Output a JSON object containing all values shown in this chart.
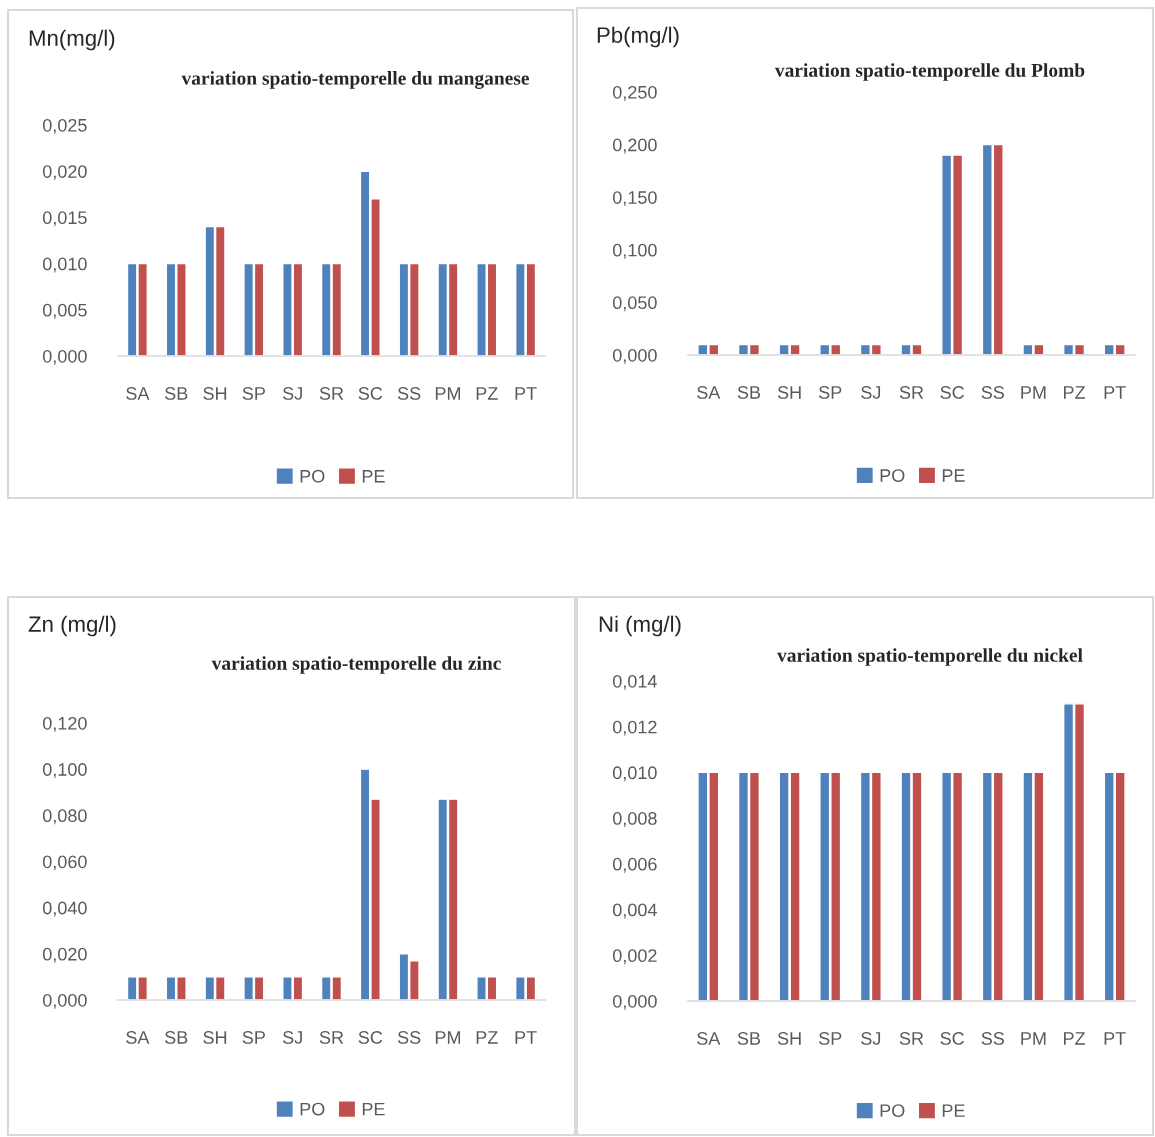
{
  "chart_data": [
    {
      "type": "bar",
      "title": "variation spatio-temporelle du manganese",
      "ylabel": "Mn(mg/l)",
      "categories": [
        "SA",
        "SB",
        "SH",
        "SP",
        "SJ",
        "SR",
        "SC",
        "SS",
        "PM",
        "PZ",
        "PT"
      ],
      "series": [
        {
          "name": "PO",
          "color": "#4f81bd",
          "values": [
            0.01,
            0.01,
            0.014,
            0.01,
            0.01,
            0.01,
            0.02,
            0.01,
            0.01,
            0.01,
            0.01
          ]
        },
        {
          "name": "PE",
          "color": "#c0504d",
          "values": [
            0.01,
            0.01,
            0.014,
            0.01,
            0.01,
            0.01,
            0.017,
            0.01,
            0.01,
            0.01,
            0.01
          ]
        }
      ],
      "ylim": [
        0,
        0.025
      ],
      "yticks": [
        {
          "value": 0,
          "label": "0,000"
        },
        {
          "value": 0.005,
          "label": "0,005"
        },
        {
          "value": 0.01,
          "label": "0,010"
        },
        {
          "value": 0.015,
          "label": "0,015"
        },
        {
          "value": 0.02,
          "label": "0,020"
        },
        {
          "value": 0.025,
          "label": "0,025"
        }
      ],
      "grid": false,
      "legend": "bottom"
    },
    {
      "type": "bar",
      "title": "variation spatio-temporelle du Plomb",
      "ylabel": "Pb(mg/l)",
      "categories": [
        "SA",
        "SB",
        "SH",
        "SP",
        "SJ",
        "SR",
        "SC",
        "SS",
        "PM",
        "PZ",
        "PT"
      ],
      "series": [
        {
          "name": "PO",
          "color": "#4f81bd",
          "values": [
            0.01,
            0.01,
            0.01,
            0.01,
            0.01,
            0.01,
            0.19,
            0.2,
            0.01,
            0.01,
            0.01
          ]
        },
        {
          "name": "PE",
          "color": "#c0504d",
          "values": [
            0.01,
            0.01,
            0.01,
            0.01,
            0.01,
            0.01,
            0.19,
            0.2,
            0.01,
            0.01,
            0.01
          ]
        }
      ],
      "ylim": [
        0,
        0.25
      ],
      "yticks": [
        {
          "value": 0,
          "label": "0,000"
        },
        {
          "value": 0.05,
          "label": "0,050"
        },
        {
          "value": 0.1,
          "label": "0,100"
        },
        {
          "value": 0.15,
          "label": "0,150"
        },
        {
          "value": 0.2,
          "label": "0,200"
        },
        {
          "value": 0.25,
          "label": "0,250"
        }
      ],
      "grid": false,
      "legend": "bottom"
    },
    {
      "type": "bar",
      "title": "variation spatio-temporelle du zinc",
      "ylabel": "Zn (mg/l)",
      "categories": [
        "SA",
        "SB",
        "SH",
        "SP",
        "SJ",
        "SR",
        "SC",
        "SS",
        "PM",
        "PZ",
        "PT"
      ],
      "series": [
        {
          "name": "PO",
          "color": "#4f81bd",
          "values": [
            0.01,
            0.01,
            0.01,
            0.01,
            0.01,
            0.01,
            0.1,
            0.02,
            0.087,
            0.01,
            0.01
          ]
        },
        {
          "name": "PE",
          "color": "#c0504d",
          "values": [
            0.01,
            0.01,
            0.01,
            0.01,
            0.01,
            0.01,
            0.087,
            0.017,
            0.087,
            0.01,
            0.01
          ]
        }
      ],
      "ylim": [
        0,
        0.12
      ],
      "yticks": [
        {
          "value": 0,
          "label": "0,000"
        },
        {
          "value": 0.02,
          "label": "0,020"
        },
        {
          "value": 0.04,
          "label": "0,040"
        },
        {
          "value": 0.06,
          "label": "0,060"
        },
        {
          "value": 0.08,
          "label": "0,080"
        },
        {
          "value": 0.1,
          "label": "0,100"
        },
        {
          "value": 0.12,
          "label": "0,120"
        }
      ],
      "grid": false,
      "legend": "bottom"
    },
    {
      "type": "bar",
      "title": "variation spatio-temporelle du nickel",
      "ylabel": "Ni (mg/l)",
      "categories": [
        "SA",
        "SB",
        "SH",
        "SP",
        "SJ",
        "SR",
        "SC",
        "SS",
        "PM",
        "PZ",
        "PT"
      ],
      "series": [
        {
          "name": "PO",
          "color": "#4f81bd",
          "values": [
            0.01,
            0.01,
            0.01,
            0.01,
            0.01,
            0.01,
            0.01,
            0.01,
            0.01,
            0.013,
            0.01
          ]
        },
        {
          "name": "PE",
          "color": "#c0504d",
          "values": [
            0.01,
            0.01,
            0.01,
            0.01,
            0.01,
            0.01,
            0.01,
            0.01,
            0.01,
            0.013,
            0.01
          ]
        }
      ],
      "ylim": [
        0,
        0.014
      ],
      "yticks": [
        {
          "value": 0,
          "label": "0,000"
        },
        {
          "value": 0.002,
          "label": "0,002"
        },
        {
          "value": 0.004,
          "label": "0,004"
        },
        {
          "value": 0.006,
          "label": "0,006"
        },
        {
          "value": 0.008,
          "label": "0,008"
        },
        {
          "value": 0.01,
          "label": "0,010"
        },
        {
          "value": 0.012,
          "label": "0,012"
        },
        {
          "value": 0.014,
          "label": "0,014"
        }
      ],
      "grid": false,
      "legend": "bottom"
    }
  ]
}
